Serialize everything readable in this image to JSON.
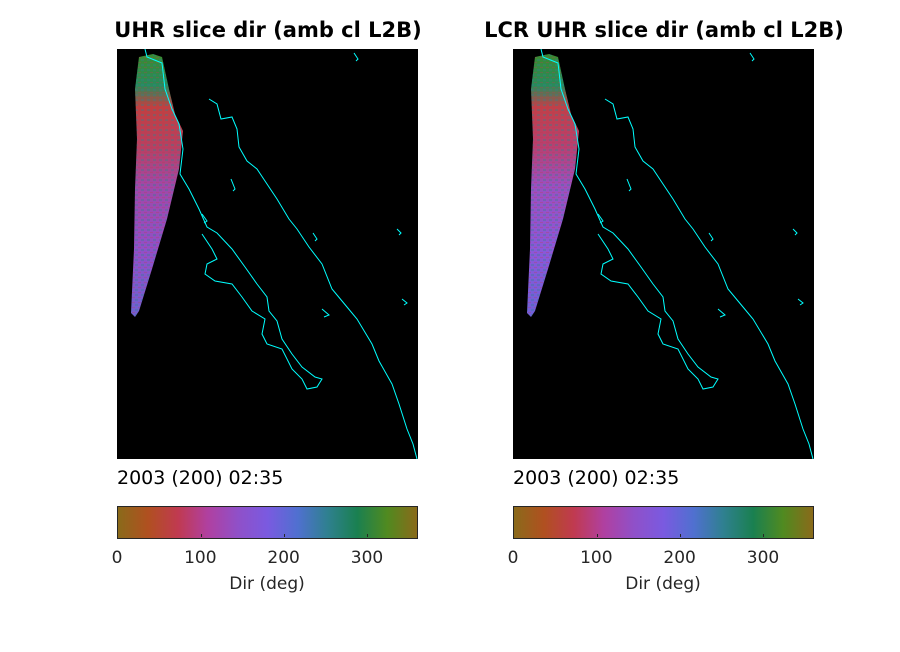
{
  "panels": [
    {
      "title": "UHR slice dir (amb cl L2B)",
      "timestamp": "2003 (200) 02:35"
    },
    {
      "title": "LCR UHR slice dir (amb cl L2B)",
      "timestamp": "2003 (200) 02:35"
    }
  ],
  "colorbar": {
    "label": "Dir (deg)",
    "range": [
      0,
      360
    ],
    "ticks": [
      "0",
      "100",
      "200",
      "300"
    ],
    "colors": [
      "#8a6a1a",
      "#b05020",
      "#c03a50",
      "#b040a0",
      "#9050c8",
      "#7a5ae0",
      "#5070d0",
      "#2f8090",
      "#1a8050",
      "#508a20",
      "#8a6a1a"
    ]
  },
  "map": {
    "background": "#000000",
    "coastline_color": "#00ffff"
  }
}
